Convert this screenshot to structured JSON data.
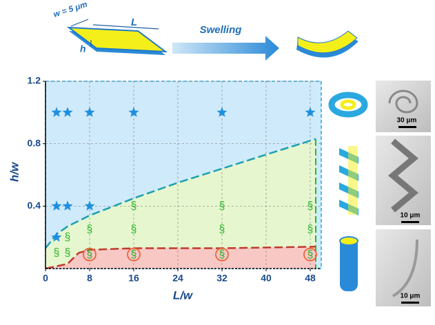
{
  "chart_data": {
    "type": "scatter",
    "xlabel": "L/w",
    "ylabel": "h/w",
    "xlim": [
      0,
      50
    ],
    "ylim": [
      0,
      1.2
    ],
    "xticks": [
      0,
      8,
      16,
      24,
      32,
      40,
      48
    ],
    "yticks": [
      0.4,
      0.8,
      1.2
    ],
    "grid": true,
    "series": [
      {
        "marker": "star",
        "color": "#1e8fe0",
        "x": [
          2,
          4,
          8,
          16,
          32,
          48,
          2,
          4,
          8,
          2
        ],
        "values": [
          1,
          1,
          1,
          1,
          1,
          1,
          0.4,
          0.4,
          0.4,
          0.2
        ]
      },
      {
        "marker": "text",
        "symbol": "§",
        "color": "#2db52d",
        "x": [
          4,
          2,
          4,
          8,
          16,
          32,
          48,
          16,
          32,
          48
        ],
        "values": [
          0.2,
          0.1,
          0.1,
          0.25,
          0.25,
          0.25,
          0.25,
          0.4,
          0.4,
          0.4
        ]
      },
      {
        "marker": "circled-text",
        "symbol": "§",
        "color": "#2db52d",
        "ring_color": "#e8643c",
        "x": [
          8,
          16,
          32,
          48
        ],
        "values": [
          0.09,
          0.09,
          0.09,
          0.09
        ]
      }
    ],
    "boundaries": [
      {
        "color": "#1aa0b0",
        "fill": "#e6f7cf",
        "x": [
          0,
          2,
          4,
          8,
          16,
          24,
          32,
          40,
          49
        ],
        "values": [
          0.13,
          0.22,
          0.27,
          0.34,
          0.45,
          0.55,
          0.64,
          0.73,
          0.83
        ]
      },
      {
        "color": "#c0392b",
        "fill": "#f8c8c4",
        "x": [
          0,
          4,
          6,
          8,
          16,
          32,
          49
        ],
        "values": [
          0,
          0.03,
          0.1,
          0.12,
          0.13,
          0.13,
          0.14
        ]
      }
    ]
  },
  "schematic": {
    "width_label": "w = 5 μm",
    "length_label": "L",
    "height_label": "h",
    "arrow_label": "Swelling"
  },
  "micrographs": [
    {
      "scale_bar": "30 μm"
    },
    {
      "scale_bar": "10 μm"
    },
    {
      "scale_bar": "10 μm"
    }
  ]
}
